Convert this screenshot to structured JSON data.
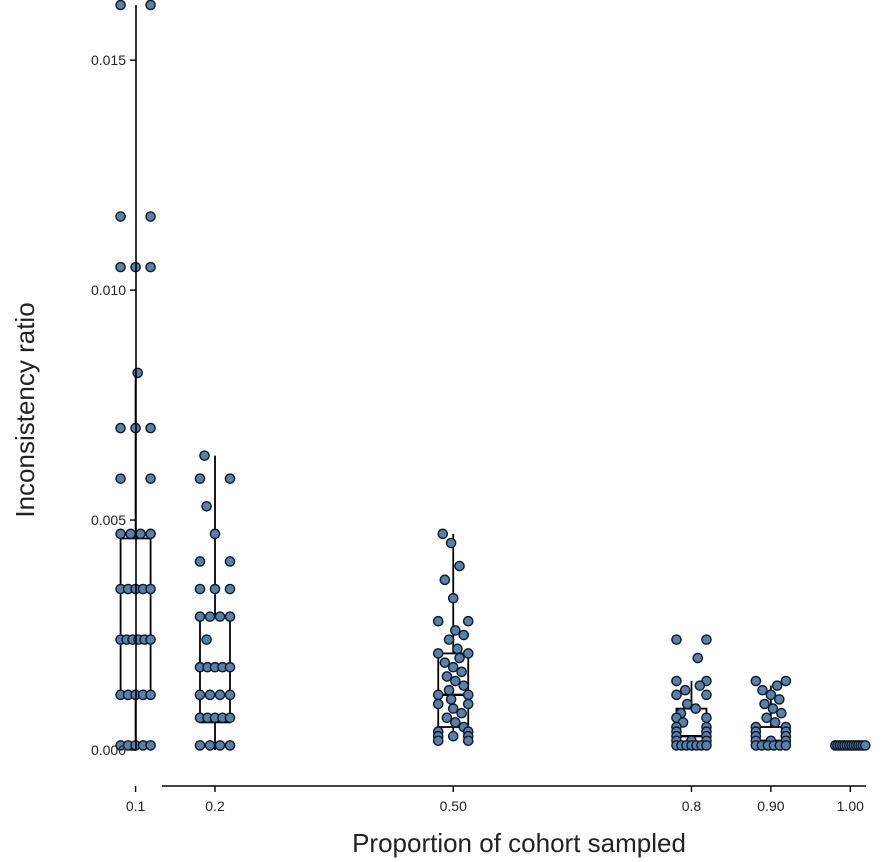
{
  "chart_data": {
    "type": "scatter",
    "subtype": "boxplot-with-jittered-points",
    "xlabel": "Proportion of cohort sampled",
    "ylabel": "Inconsistency ratio",
    "ylim": [
      0,
      0.0162
    ],
    "y_ticks": [
      "0.000",
      "0.005",
      "0.010",
      "0.015"
    ],
    "y_tick_values": [
      0,
      0.005,
      0.01,
      0.015
    ],
    "x_tick_labels": [
      "0.1",
      "0.2",
      "0.50",
      "0.8",
      "0.90",
      "1.00"
    ],
    "x_tick_values": [
      0.1,
      0.2,
      0.5,
      0.8,
      0.9,
      1.0
    ],
    "xlim": [
      0.03,
      1.05
    ],
    "grid": false,
    "legend": "none",
    "colors": {
      "point_fill": "#5b7fa6",
      "point_edge": "#0d1a2b",
      "box": "#000000"
    },
    "groups": [
      {
        "x": 0.1,
        "box": {
          "whisker_low": 0.0,
          "q1": 0.00125,
          "median": 0.0024,
          "q3": 0.0046,
          "whisker_high": 0.0082
        },
        "points": [
          0.0162,
          0.0162,
          0.0116,
          0.0116,
          0.0105,
          0.0105,
          0.0105,
          0.0082,
          0.007,
          0.007,
          0.007,
          0.0059,
          0.0059,
          0.0047,
          0.0047,
          0.0047,
          0.0047,
          0.0035,
          0.0035,
          0.0035,
          0.0035,
          0.0035,
          0.0024,
          0.0024,
          0.0024,
          0.0024,
          0.0024,
          0.0024,
          0.0012,
          0.0012,
          0.0012,
          0.0012,
          0.0012,
          0.0001,
          0.0001,
          0.0001,
          0.0001,
          0.0001
        ]
      },
      {
        "x": 0.2,
        "box": {
          "whisker_low": 0.0,
          "q1": 0.0006,
          "median": 0.0018,
          "q3": 0.0029,
          "whisker_high": 0.0064
        },
        "points": [
          0.0064,
          0.0059,
          0.0059,
          0.0053,
          0.0047,
          0.0041,
          0.0041,
          0.0035,
          0.0035,
          0.0035,
          0.0029,
          0.0029,
          0.0029,
          0.0029,
          0.0024,
          0.0018,
          0.0018,
          0.0018,
          0.0018,
          0.0018,
          0.0012,
          0.0012,
          0.0012,
          0.0012,
          0.0007,
          0.0007,
          0.0007,
          0.0007,
          0.0007,
          0.0001,
          0.0001,
          0.0001,
          0.0001
        ]
      },
      {
        "x": 0.5,
        "box": {
          "whisker_low": 0.0002,
          "q1": 0.0005,
          "median": 0.0012,
          "q3": 0.0021,
          "whisker_high": 0.0047
        },
        "points": [
          0.0047,
          0.0045,
          0.004,
          0.0037,
          0.0033,
          0.0028,
          0.0028,
          0.0026,
          0.0025,
          0.0024,
          0.0022,
          0.0021,
          0.0021,
          0.002,
          0.0019,
          0.0018,
          0.0017,
          0.0016,
          0.0015,
          0.0014,
          0.0013,
          0.0012,
          0.0012,
          0.0011,
          0.001,
          0.001,
          0.0009,
          0.0008,
          0.0007,
          0.0006,
          0.0005,
          0.0004,
          0.0004,
          0.0003,
          0.0003,
          0.0003,
          0.0002,
          0.0002
        ]
      },
      {
        "x": 0.8,
        "box": {
          "whisker_low": 0.0,
          "q1": 0.0001,
          "median": 0.0003,
          "q3": 0.0009,
          "whisker_high": 0.0015
        },
        "points": [
          0.0024,
          0.0024,
          0.002,
          0.0015,
          0.0015,
          0.0014,
          0.0013,
          0.0012,
          0.0012,
          0.001,
          0.0009,
          0.0008,
          0.0007,
          0.0007,
          0.0006,
          0.0005,
          0.0005,
          0.0004,
          0.0004,
          0.0003,
          0.0003,
          0.0002,
          0.0002,
          0.0002,
          0.0001,
          0.0001,
          0.0001,
          0.0001,
          0.0001,
          0.0001,
          0.0001
        ]
      },
      {
        "x": 0.9,
        "box": {
          "whisker_low": 0.0,
          "q1": 0.0001,
          "median": 0.0002,
          "q3": 0.0005,
          "whisker_high": 0.0014
        },
        "points": [
          0.0015,
          0.0015,
          0.0014,
          0.0013,
          0.0012,
          0.0011,
          0.001,
          0.0009,
          0.0008,
          0.0007,
          0.0006,
          0.0005,
          0.0005,
          0.0004,
          0.0004,
          0.0003,
          0.0003,
          0.0002,
          0.0002,
          0.0002,
          0.0001,
          0.0001,
          0.0001,
          0.0001,
          0.0001,
          0.0001
        ]
      },
      {
        "x": 1.0,
        "box": {
          "whisker_low": 0.0001,
          "q1": 0.0001,
          "median": 0.0001,
          "q3": 0.0001,
          "whisker_high": 0.0001
        },
        "points": [
          0.0001,
          0.0001,
          0.0001,
          0.0001,
          0.0001,
          0.0001,
          0.0001,
          0.0001,
          0.0001,
          0.0001,
          0.0001,
          0.0001,
          0.0001,
          0.0001
        ]
      }
    ]
  }
}
